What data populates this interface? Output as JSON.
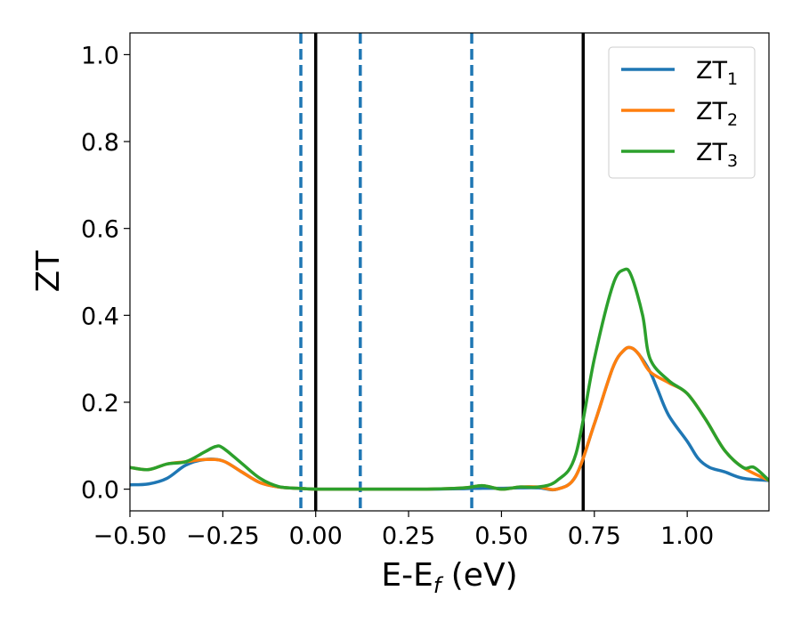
{
  "chart_data": {
    "type": "line",
    "title": "",
    "xlabel": {
      "main": "E-E",
      "sub": "f",
      "suffix": " (eV)"
    },
    "ylabel": "ZT",
    "xlim": [
      -0.5,
      1.22
    ],
    "ylim": [
      -0.05,
      1.05
    ],
    "xticks": [
      -0.5,
      -0.25,
      0.0,
      0.25,
      0.5,
      0.75,
      1.0
    ],
    "xtick_labels": [
      "−0.50",
      "−0.25",
      "0.00",
      "0.25",
      "0.50",
      "0.75",
      "1.00"
    ],
    "yticks": [
      0.0,
      0.2,
      0.4,
      0.6,
      0.8,
      1.0
    ],
    "ytick_labels": [
      "0.0",
      "0.2",
      "0.4",
      "0.6",
      "0.8",
      "1.0"
    ],
    "grid": false,
    "legend_position": "top-right",
    "vlines_solid": [
      0.0,
      0.72
    ],
    "vlines_dashed": [
      -0.04,
      0.12,
      0.42
    ],
    "vline_solid_color": "#000000",
    "vline_dashed_color": "#1f77b4",
    "series": [
      {
        "name": "ZT",
        "sub": "1",
        "color": "#1f77b4",
        "x": [
          -0.5,
          -0.45,
          -0.4,
          -0.35,
          -0.3,
          -0.25,
          -0.2,
          -0.15,
          -0.1,
          -0.05,
          0.0,
          0.1,
          0.2,
          0.3,
          0.4,
          0.45,
          0.5,
          0.55,
          0.6,
          0.65,
          0.7,
          0.75,
          0.8,
          0.83,
          0.85,
          0.87,
          0.9,
          0.92,
          0.95,
          1.0,
          1.03,
          1.06,
          1.1,
          1.15,
          1.22
        ],
        "y": [
          0.01,
          0.012,
          0.025,
          0.055,
          0.068,
          0.065,
          0.04,
          0.015,
          0.005,
          0.002,
          0.0,
          0.0,
          0.0,
          0.0,
          0.001,
          0.002,
          0.002,
          0.003,
          0.003,
          0.0,
          0.03,
          0.15,
          0.28,
          0.32,
          0.325,
          0.31,
          0.27,
          0.23,
          0.17,
          0.11,
          0.07,
          0.05,
          0.04,
          0.025,
          0.02
        ]
      },
      {
        "name": "ZT",
        "sub": "2",
        "color": "#ff7f0e",
        "x": [
          -0.5,
          -0.45,
          -0.4,
          -0.35,
          -0.3,
          -0.25,
          -0.2,
          -0.15,
          -0.1,
          -0.05,
          0.0,
          0.1,
          0.2,
          0.3,
          0.4,
          0.45,
          0.5,
          0.55,
          0.6,
          0.65,
          0.7,
          0.75,
          0.8,
          0.83,
          0.85,
          0.87,
          0.9,
          0.95,
          1.0,
          1.05,
          1.1,
          1.15,
          1.22
        ],
        "y": [
          0.05,
          0.045,
          0.058,
          0.063,
          0.068,
          0.065,
          0.04,
          0.015,
          0.005,
          0.002,
          0.0,
          0.0,
          0.0,
          0.0,
          0.003,
          0.008,
          0.0,
          0.005,
          0.005,
          0.0,
          0.03,
          0.15,
          0.28,
          0.32,
          0.325,
          0.31,
          0.27,
          0.245,
          0.22,
          0.16,
          0.09,
          0.05,
          0.02
        ]
      },
      {
        "name": "ZT",
        "sub": "3",
        "color": "#2ca02c",
        "x": [
          -0.5,
          -0.45,
          -0.4,
          -0.35,
          -0.3,
          -0.27,
          -0.25,
          -0.2,
          -0.15,
          -0.1,
          -0.05,
          0.0,
          0.1,
          0.2,
          0.3,
          0.4,
          0.45,
          0.5,
          0.55,
          0.6,
          0.65,
          0.7,
          0.75,
          0.8,
          0.83,
          0.85,
          0.88,
          0.9,
          0.95,
          1.0,
          1.05,
          1.1,
          1.15,
          1.18,
          1.22
        ],
        "y": [
          0.05,
          0.045,
          0.058,
          0.063,
          0.085,
          0.098,
          0.095,
          0.06,
          0.025,
          0.006,
          0.002,
          0.0,
          0.0,
          0.0,
          0.0,
          0.003,
          0.008,
          0.0,
          0.005,
          0.005,
          0.02,
          0.08,
          0.3,
          0.47,
          0.505,
          0.49,
          0.4,
          0.3,
          0.25,
          0.22,
          0.16,
          0.09,
          0.05,
          0.05,
          0.02
        ]
      }
    ]
  }
}
